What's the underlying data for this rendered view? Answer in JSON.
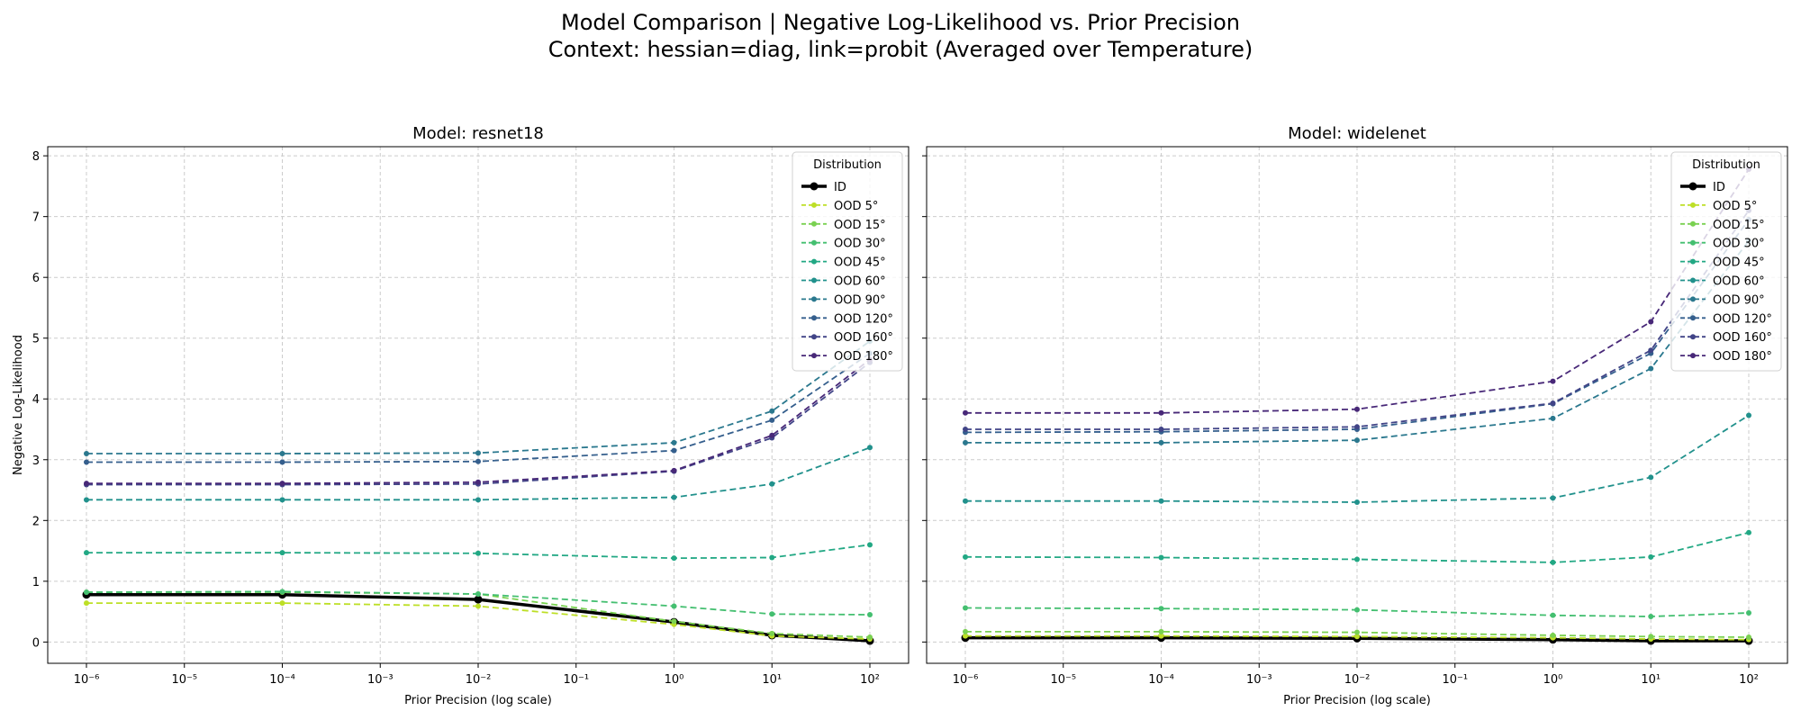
{
  "figure": {
    "title_line1": "Model Comparison | Negative Log-Likelihood vs. Prior Precision",
    "title_line2": "Context: hessian=diag, link=probit (Averaged over Temperature)"
  },
  "chart_data": [
    {
      "type": "line",
      "title": "Model: resnet18",
      "xlabel": "Prior Precision (log scale)",
      "ylabel": "Negative Log-Likelihood",
      "x_scale": "log",
      "x_ticks": [
        1e-06,
        1e-05,
        0.0001,
        0.001,
        0.01,
        0.1,
        1,
        10,
        100
      ],
      "x_tick_labels": [
        "10⁻⁶",
        "10⁻⁵",
        "10⁻⁴",
        "10⁻³",
        "10⁻²",
        "10⁻¹",
        "10⁰",
        "10¹",
        "10²"
      ],
      "y_ticks": [
        0,
        1,
        2,
        3,
        4,
        5,
        6,
        7,
        8
      ],
      "ylim": [
        -0.35,
        8.15
      ],
      "grid": true,
      "legend_title": "Distribution",
      "legend_position": "top-right",
      "x": [
        1e-06,
        0.0001,
        0.01,
        1,
        10,
        100
      ],
      "series": [
        {
          "name": "ID",
          "color": "#000000",
          "style": "solid",
          "values": [
            0.78,
            0.78,
            0.7,
            0.33,
            0.11,
            0.02
          ]
        },
        {
          "name": "OOD 5°",
          "color": "#bddf26",
          "style": "dashed",
          "values": [
            0.64,
            0.64,
            0.59,
            0.29,
            0.1,
            0.05
          ]
        },
        {
          "name": "OOD 15°",
          "color": "#7ad151",
          "style": "dashed",
          "values": [
            0.82,
            0.82,
            0.79,
            0.34,
            0.14,
            0.08
          ]
        },
        {
          "name": "OOD 30°",
          "color": "#44bf70",
          "style": "dashed",
          "values": [
            0.82,
            0.83,
            0.79,
            0.59,
            0.46,
            0.45
          ]
        },
        {
          "name": "OOD 45°",
          "color": "#22a884",
          "style": "dashed",
          "values": [
            1.47,
            1.47,
            1.46,
            1.38,
            1.39,
            1.6
          ]
        },
        {
          "name": "OOD 60°",
          "color": "#21918c",
          "style": "dashed",
          "values": [
            2.34,
            2.34,
            2.34,
            2.38,
            2.6,
            3.2
          ]
        },
        {
          "name": "OOD 90°",
          "color": "#2a788e",
          "style": "dashed",
          "values": [
            3.1,
            3.1,
            3.11,
            3.28,
            3.8,
            4.95
          ]
        },
        {
          "name": "OOD 120°",
          "color": "#355f8d",
          "style": "dashed",
          "values": [
            2.96,
            2.96,
            2.97,
            3.15,
            3.65,
            4.75
          ]
        },
        {
          "name": "OOD 160°",
          "color": "#414487",
          "style": "dashed",
          "values": [
            2.59,
            2.59,
            2.6,
            2.81,
            3.36,
            4.6
          ]
        },
        {
          "name": "OOD 180°",
          "color": "#482878",
          "style": "dashed",
          "values": [
            2.61,
            2.61,
            2.63,
            2.82,
            3.4,
            4.65
          ]
        }
      ]
    },
    {
      "type": "line",
      "title": "Model: widelenet",
      "xlabel": "Prior Precision (log scale)",
      "ylabel": "",
      "x_scale": "log",
      "x_ticks": [
        1e-06,
        1e-05,
        0.0001,
        0.001,
        0.01,
        0.1,
        1,
        10,
        100
      ],
      "x_tick_labels": [
        "10⁻⁶",
        "10⁻⁵",
        "10⁻⁴",
        "10⁻³",
        "10⁻²",
        "10⁻¹",
        "10⁰",
        "10¹",
        "10²"
      ],
      "y_ticks": [
        0,
        1,
        2,
        3,
        4,
        5,
        6,
        7,
        8
      ],
      "ylim": [
        -0.35,
        8.15
      ],
      "grid": true,
      "legend_title": "Distribution",
      "legend_position": "top-right",
      "x": [
        1e-06,
        0.0001,
        0.01,
        1,
        10,
        100
      ],
      "series": [
        {
          "name": "ID",
          "color": "#000000",
          "style": "solid",
          "values": [
            0.07,
            0.07,
            0.06,
            0.04,
            0.02,
            0.02
          ]
        },
        {
          "name": "OOD 5°",
          "color": "#bddf26",
          "style": "dashed",
          "values": [
            0.1,
            0.1,
            0.09,
            0.07,
            0.05,
            0.04
          ]
        },
        {
          "name": "OOD 15°",
          "color": "#7ad151",
          "style": "dashed",
          "values": [
            0.17,
            0.17,
            0.16,
            0.11,
            0.09,
            0.08
          ]
        },
        {
          "name": "OOD 30°",
          "color": "#44bf70",
          "style": "dashed",
          "values": [
            0.56,
            0.55,
            0.53,
            0.44,
            0.42,
            0.48
          ]
        },
        {
          "name": "OOD 45°",
          "color": "#22a884",
          "style": "dashed",
          "values": [
            1.4,
            1.39,
            1.36,
            1.31,
            1.4,
            1.8
          ]
        },
        {
          "name": "OOD 60°",
          "color": "#21918c",
          "style": "dashed",
          "values": [
            2.32,
            2.32,
            2.3,
            2.37,
            2.71,
            3.73
          ]
        },
        {
          "name": "OOD 90°",
          "color": "#2a788e",
          "style": "dashed",
          "values": [
            3.28,
            3.28,
            3.32,
            3.68,
            4.5,
            6.6
          ]
        },
        {
          "name": "OOD 120°",
          "color": "#355f8d",
          "style": "dashed",
          "values": [
            3.45,
            3.46,
            3.5,
            3.92,
            4.75,
            6.95
          ]
        },
        {
          "name": "OOD 160°",
          "color": "#414487",
          "style": "dashed",
          "values": [
            3.5,
            3.5,
            3.54,
            3.93,
            4.8,
            7.1
          ]
        },
        {
          "name": "OOD 180°",
          "color": "#482878",
          "style": "dashed",
          "values": [
            3.77,
            3.77,
            3.83,
            4.29,
            5.27,
            7.78
          ]
        }
      ]
    }
  ]
}
